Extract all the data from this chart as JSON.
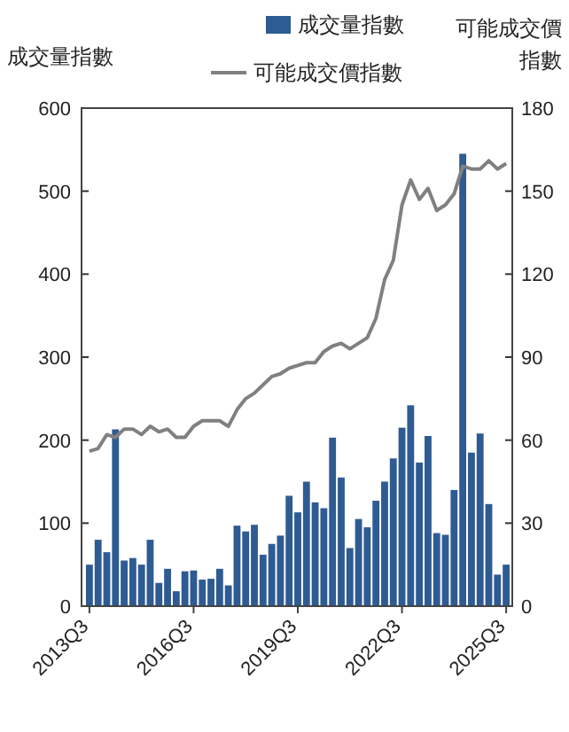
{
  "chart_data": {
    "type": "bar",
    "ylabel": "成交量指數",
    "y2label": "可能成交價指數",
    "legend": "top",
    "categories": [
      "2013Q3",
      null,
      null,
      null,
      null,
      null,
      null,
      null,
      null,
      null,
      null,
      null,
      "2016Q3",
      null,
      null,
      null,
      null,
      null,
      null,
      null,
      null,
      null,
      null,
      null,
      "2019Q3",
      null,
      null,
      null,
      null,
      null,
      null,
      null,
      null,
      null,
      null,
      null,
      "2022Q3",
      null,
      null,
      null,
      null,
      null,
      null,
      null,
      null,
      null,
      null,
      null,
      "2025Q3"
    ],
    "ylim": [
      0,
      600
    ],
    "yticks": [
      0,
      100,
      200,
      300,
      400,
      500,
      600
    ],
    "y2lim": [
      0,
      180
    ],
    "y2ticks": [
      0,
      30,
      60,
      90,
      120,
      150,
      180
    ],
    "series": [
      {
        "name": "成交量指數",
        "color": "#2f5b93",
        "values": [
          50,
          80,
          65,
          213,
          55,
          58,
          50,
          80,
          28,
          45,
          18,
          42,
          43,
          32,
          33,
          45,
          25,
          97,
          90,
          98,
          62,
          75,
          85,
          133,
          113,
          150,
          125,
          118,
          203,
          155,
          70,
          105,
          95,
          127,
          150,
          178,
          215,
          242,
          173,
          205,
          88,
          86,
          140,
          545,
          185,
          208,
          123,
          38,
          50
        ]
      },
      {
        "name": "可能成交價指數",
        "type": "line",
        "axis": "y2",
        "color": "#808080",
        "values": [
          56,
          57,
          62,
          61,
          64,
          64,
          62,
          65,
          63,
          64,
          61,
          61,
          65,
          67,
          67,
          67,
          65,
          71,
          75,
          77,
          80,
          83,
          84,
          86,
          87,
          88,
          88,
          92,
          94,
          95,
          93,
          95,
          97,
          104,
          118,
          125,
          145,
          154,
          147,
          151,
          143,
          145,
          149,
          159,
          158,
          158,
          161,
          158,
          160
        ]
      }
    ]
  }
}
